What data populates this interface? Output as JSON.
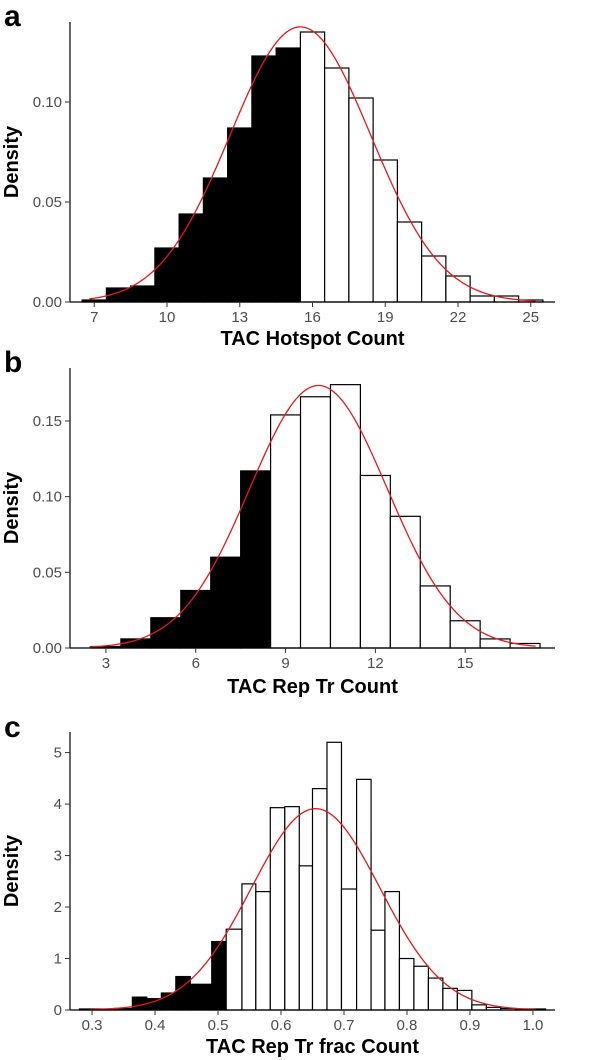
{
  "chart_data": [
    {
      "type": "histogram",
      "panel_label": "a",
      "xlabel": "TAC Hotspot Count",
      "ylabel": "Density",
      "xlim": [
        6,
        26
      ],
      "ylim": [
        0,
        0.14
      ],
      "xticks": [
        7,
        10,
        13,
        16,
        19,
        22,
        25
      ],
      "xtick_labels": [
        "7",
        "10",
        "13",
        "16",
        "19",
        "22",
        "25"
      ],
      "yticks": [
        0,
        0.05,
        0.1
      ],
      "ytick_labels": [
        "0.00",
        "0.05",
        "0.10"
      ],
      "grid": false,
      "bars": [
        {
          "x0": 6.5,
          "x1": 7.5,
          "value": 0.001,
          "filled": true
        },
        {
          "x0": 7.5,
          "x1": 8.5,
          "value": 0.007,
          "filled": true
        },
        {
          "x0": 8.5,
          "x1": 9.5,
          "value": 0.008,
          "filled": true
        },
        {
          "x0": 9.5,
          "x1": 10.5,
          "value": 0.027,
          "filled": true
        },
        {
          "x0": 10.5,
          "x1": 11.5,
          "value": 0.044,
          "filled": true
        },
        {
          "x0": 11.5,
          "x1": 12.5,
          "value": 0.062,
          "filled": true
        },
        {
          "x0": 12.5,
          "x1": 13.5,
          "value": 0.087,
          "filled": true
        },
        {
          "x0": 13.5,
          "x1": 14.5,
          "value": 0.123,
          "filled": true
        },
        {
          "x0": 14.5,
          "x1": 15.5,
          "value": 0.127,
          "filled": true
        },
        {
          "x0": 15.5,
          "x1": 16.5,
          "value": 0.135,
          "filled": false
        },
        {
          "x0": 16.5,
          "x1": 17.5,
          "value": 0.117,
          "filled": false
        },
        {
          "x0": 17.5,
          "x1": 18.5,
          "value": 0.102,
          "filled": false
        },
        {
          "x0": 18.5,
          "x1": 19.5,
          "value": 0.071,
          "filled": false
        },
        {
          "x0": 19.5,
          "x1": 20.5,
          "value": 0.04,
          "filled": false
        },
        {
          "x0": 20.5,
          "x1": 21.5,
          "value": 0.023,
          "filled": false
        },
        {
          "x0": 21.5,
          "x1": 22.5,
          "value": 0.013,
          "filled": false
        },
        {
          "x0": 22.5,
          "x1": 23.5,
          "value": 0.003,
          "filled": false
        },
        {
          "x0": 23.5,
          "x1": 24.5,
          "value": 0.003,
          "filled": false
        },
        {
          "x0": 24.5,
          "x1": 25.5,
          "value": 0.001,
          "filled": false
        }
      ],
      "normal_curve": {
        "mean": 15.5,
        "sd": 2.9
      },
      "colors": {
        "filled": "#000000",
        "empty": "#ffffff",
        "curve": "#e41a1c"
      }
    },
    {
      "type": "histogram",
      "panel_label": "b",
      "xlabel": "TAC Rep Tr Count",
      "ylabel": "Density",
      "xlim": [
        1.8,
        18
      ],
      "ylim": [
        0,
        0.185
      ],
      "xticks": [
        3,
        6,
        9,
        12,
        15
      ],
      "xtick_labels": [
        "3",
        "6",
        "9",
        "12",
        "15"
      ],
      "yticks": [
        0,
        0.05,
        0.1,
        0.15
      ],
      "ytick_labels": [
        "0.00",
        "0.05",
        "0.10",
        "0.15"
      ],
      "grid": false,
      "bars": [
        {
          "x0": 2.5,
          "x1": 3.5,
          "value": 0.001,
          "filled": true
        },
        {
          "x0": 3.5,
          "x1": 4.5,
          "value": 0.006,
          "filled": true
        },
        {
          "x0": 4.5,
          "x1": 5.5,
          "value": 0.02,
          "filled": true
        },
        {
          "x0": 5.5,
          "x1": 6.5,
          "value": 0.038,
          "filled": true
        },
        {
          "x0": 6.5,
          "x1": 7.5,
          "value": 0.06,
          "filled": true
        },
        {
          "x0": 7.5,
          "x1": 8.5,
          "value": 0.117,
          "filled": true
        },
        {
          "x0": 8.5,
          "x1": 9.5,
          "value": 0.154,
          "filled": false
        },
        {
          "x0": 9.5,
          "x1": 10.5,
          "value": 0.166,
          "filled": false
        },
        {
          "x0": 10.5,
          "x1": 11.5,
          "value": 0.174,
          "filled": false
        },
        {
          "x0": 11.5,
          "x1": 12.5,
          "value": 0.114,
          "filled": false
        },
        {
          "x0": 12.5,
          "x1": 13.5,
          "value": 0.087,
          "filled": false
        },
        {
          "x0": 13.5,
          "x1": 14.5,
          "value": 0.041,
          "filled": false
        },
        {
          "x0": 14.5,
          "x1": 15.5,
          "value": 0.018,
          "filled": false
        },
        {
          "x0": 15.5,
          "x1": 16.5,
          "value": 0.006,
          "filled": false
        },
        {
          "x0": 16.5,
          "x1": 17.5,
          "value": 0.003,
          "filled": false
        }
      ],
      "normal_curve": {
        "mean": 10.1,
        "sd": 2.3
      },
      "colors": {
        "filled": "#000000",
        "empty": "#ffffff",
        "curve": "#e41a1c"
      }
    },
    {
      "type": "histogram",
      "panel_label": "c",
      "xlabel": "TAC Rep Tr frac Count",
      "ylabel": "Density",
      "xlim": [
        0.265,
        1.035
      ],
      "ylim": [
        0,
        5.4
      ],
      "xticks": [
        0.3,
        0.4,
        0.5,
        0.6,
        0.7,
        0.8,
        0.9,
        1.0
      ],
      "xtick_labels": [
        "0.3",
        "0.4",
        "0.5",
        "0.6",
        "0.7",
        "0.8",
        "0.9",
        "1.0"
      ],
      "yticks": [
        0,
        1,
        2,
        3,
        4,
        5
      ],
      "ytick_labels": [
        "0",
        "1",
        "2",
        "3",
        "4",
        "5"
      ],
      "grid": false,
      "bars": [
        {
          "x0": 0.28,
          "x1": 0.335,
          "value": 0.02,
          "filled": true
        },
        {
          "x0": 0.335,
          "x1": 0.364,
          "value": 0.03,
          "filled": true
        },
        {
          "x0": 0.364,
          "x1": 0.387,
          "value": 0.25,
          "filled": true
        },
        {
          "x0": 0.387,
          "x1": 0.41,
          "value": 0.22,
          "filled": true
        },
        {
          "x0": 0.41,
          "x1": 0.433,
          "value": 0.33,
          "filled": true
        },
        {
          "x0": 0.433,
          "x1": 0.456,
          "value": 0.65,
          "filled": true
        },
        {
          "x0": 0.456,
          "x1": 0.49,
          "value": 0.5,
          "filled": true
        },
        {
          "x0": 0.49,
          "x1": 0.513,
          "value": 1.33,
          "filled": true
        },
        {
          "x0": 0.513,
          "x1": 0.538,
          "value": 1.57,
          "filled": false
        },
        {
          "x0": 0.538,
          "x1": 0.56,
          "value": 2.45,
          "filled": false
        },
        {
          "x0": 0.56,
          "x1": 0.583,
          "value": 2.3,
          "filled": false
        },
        {
          "x0": 0.583,
          "x1": 0.606,
          "value": 3.93,
          "filled": false
        },
        {
          "x0": 0.606,
          "x1": 0.629,
          "value": 3.95,
          "filled": false
        },
        {
          "x0": 0.629,
          "x1": 0.65,
          "value": 2.8,
          "filled": false
        },
        {
          "x0": 0.65,
          "x1": 0.673,
          "value": 4.3,
          "filled": false
        },
        {
          "x0": 0.673,
          "x1": 0.696,
          "value": 5.2,
          "filled": false
        },
        {
          "x0": 0.696,
          "x1": 0.72,
          "value": 2.35,
          "filled": false
        },
        {
          "x0": 0.72,
          "x1": 0.743,
          "value": 4.48,
          "filled": false
        },
        {
          "x0": 0.743,
          "x1": 0.765,
          "value": 1.55,
          "filled": false
        },
        {
          "x0": 0.765,
          "x1": 0.788,
          "value": 2.3,
          "filled": false
        },
        {
          "x0": 0.788,
          "x1": 0.811,
          "value": 1.0,
          "filled": false
        },
        {
          "x0": 0.811,
          "x1": 0.834,
          "value": 0.85,
          "filled": false
        },
        {
          "x0": 0.834,
          "x1": 0.857,
          "value": 0.62,
          "filled": false
        },
        {
          "x0": 0.857,
          "x1": 0.88,
          "value": 0.42,
          "filled": false
        },
        {
          "x0": 0.88,
          "x1": 0.903,
          "value": 0.38,
          "filled": false
        },
        {
          "x0": 0.903,
          "x1": 0.926,
          "value": 0.1,
          "filled": false
        },
        {
          "x0": 0.926,
          "x1": 0.949,
          "value": 0.05,
          "filled": false
        },
        {
          "x0": 0.949,
          "x1": 0.972,
          "value": 0.03,
          "filled": false
        },
        {
          "x0": 0.972,
          "x1": 0.995,
          "value": 0.02,
          "filled": false
        },
        {
          "x0": 0.995,
          "x1": 1.02,
          "value": 0.02,
          "filled": false
        }
      ],
      "normal_curve": {
        "mean": 0.655,
        "sd": 0.102
      },
      "colors": {
        "filled": "#000000",
        "empty": "#ffffff",
        "curve": "#e41a1c"
      }
    }
  ]
}
